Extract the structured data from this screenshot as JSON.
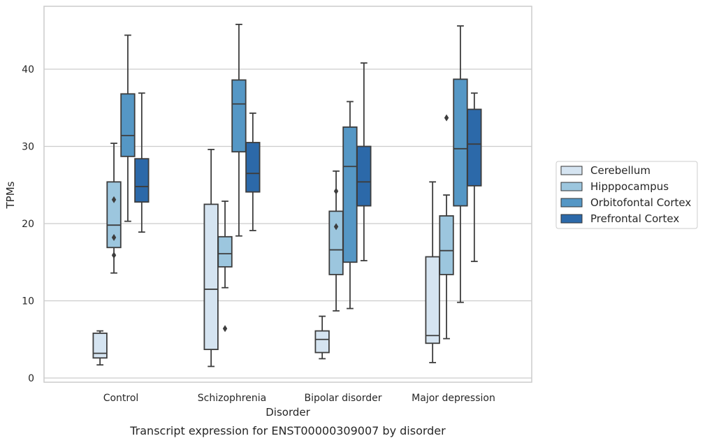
{
  "chart_data": {
    "type": "box",
    "caption": "Transcript expression for ENST00000309007 by disorder",
    "xlabel": "Disorder",
    "ylabel": "TPMs",
    "ylim": [
      -0.5,
      48
    ],
    "yticks": [
      0,
      10,
      20,
      30,
      40
    ],
    "grid": true,
    "legend_position": "right",
    "categories": [
      "Control",
      "Schizophrenia",
      "Bipolar disorder",
      "Major depression"
    ],
    "series": [
      {
        "name": "Cerebellum",
        "color": "#d5e4f1",
        "boxes": [
          {
            "whislo": 1.7,
            "q1": 2.6,
            "med": 3.2,
            "q3": 5.8,
            "whishi": 6.1,
            "fliers": []
          },
          {
            "whislo": 1.5,
            "q1": 3.7,
            "med": 11.5,
            "q3": 22.5,
            "whishi": 29.6,
            "fliers": []
          },
          {
            "whislo": 2.5,
            "q1": 3.3,
            "med": 5.0,
            "q3": 6.1,
            "whishi": 8.0,
            "fliers": []
          },
          {
            "whislo": 2.0,
            "q1": 4.5,
            "med": 5.5,
            "q3": 15.7,
            "whishi": 25.4,
            "fliers": []
          }
        ]
      },
      {
        "name": "Hipppocampus",
        "color": "#9cc6de",
        "boxes": [
          {
            "whislo": 13.6,
            "q1": 16.9,
            "med": 19.8,
            "q3": 25.4,
            "whishi": 30.4,
            "fliers": [
              23.1,
              18.2,
              15.9
            ]
          },
          {
            "whislo": 11.7,
            "q1": 14.4,
            "med": 16.1,
            "q3": 18.3,
            "whishi": 22.9,
            "fliers": [
              6.4
            ]
          },
          {
            "whislo": 8.7,
            "q1": 13.4,
            "med": 16.6,
            "q3": 21.6,
            "whishi": 26.8,
            "fliers": [
              24.2,
              19.6
            ]
          },
          {
            "whislo": 5.1,
            "q1": 13.4,
            "med": 16.5,
            "q3": 21.0,
            "whishi": 23.7,
            "fliers": [
              33.7
            ]
          }
        ]
      },
      {
        "name": "Orbitofontal Cortex",
        "color": "#5597c5",
        "boxes": [
          {
            "whislo": 20.3,
            "q1": 28.7,
            "med": 31.4,
            "q3": 36.8,
            "whishi": 44.4,
            "fliers": []
          },
          {
            "whislo": 18.4,
            "q1": 29.3,
            "med": 35.5,
            "q3": 38.6,
            "whishi": 45.8,
            "fliers": []
          },
          {
            "whislo": 9.0,
            "q1": 15.0,
            "med": 27.4,
            "q3": 32.5,
            "whishi": 35.8,
            "fliers": []
          },
          {
            "whislo": 9.8,
            "q1": 22.3,
            "med": 29.7,
            "q3": 38.7,
            "whishi": 45.6,
            "fliers": []
          }
        ]
      },
      {
        "name": "Prefrontal Cortex",
        "color": "#2c69a9",
        "boxes": [
          {
            "whislo": 18.9,
            "q1": 22.8,
            "med": 24.8,
            "q3": 28.4,
            "whishi": 36.9,
            "fliers": []
          },
          {
            "whislo": 19.1,
            "q1": 24.1,
            "med": 26.5,
            "q3": 30.5,
            "whishi": 34.3,
            "fliers": []
          },
          {
            "whislo": 15.2,
            "q1": 22.3,
            "med": 25.4,
            "q3": 30.0,
            "whishi": 40.8,
            "fliers": []
          },
          {
            "whislo": 15.1,
            "q1": 24.9,
            "med": 30.3,
            "q3": 34.8,
            "whishi": 36.9,
            "fliers": []
          }
        ]
      }
    ]
  }
}
